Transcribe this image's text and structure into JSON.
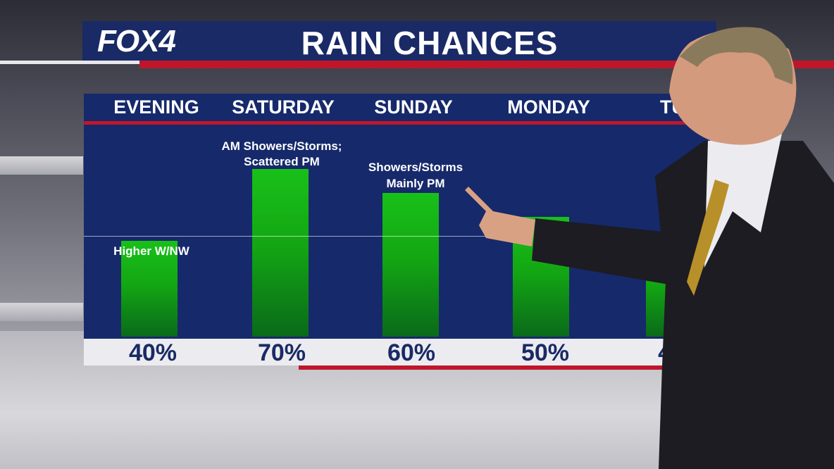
{
  "header": {
    "logo": "FOX4",
    "title": "RAIN CHANCES"
  },
  "colors": {
    "navy": "#16296b",
    "red": "#c0162a",
    "bar_green": "#19c019"
  },
  "chart_data": {
    "type": "bar",
    "categories": [
      "EVENING",
      "SATURDAY",
      "SUNDAY",
      "MONDAY",
      "TUE"
    ],
    "values": [
      40,
      70,
      60,
      50,
      40
    ],
    "value_labels": [
      "40%",
      "70%",
      "60%",
      "50%",
      "40"
    ],
    "annotations": [
      {
        "category": "EVENING",
        "text_lines": [
          "Higher W/NW"
        ]
      },
      {
        "category": "SATURDAY",
        "text_lines": [
          "AM Showers/Storms;",
          "Scattered PM"
        ]
      },
      {
        "category": "SUNDAY",
        "text_lines": [
          "Showers/Storms",
          "Mainly PM"
        ]
      }
    ],
    "ylim": [
      0,
      100
    ],
    "ylabel": "",
    "xlabel": "",
    "grid": false
  }
}
